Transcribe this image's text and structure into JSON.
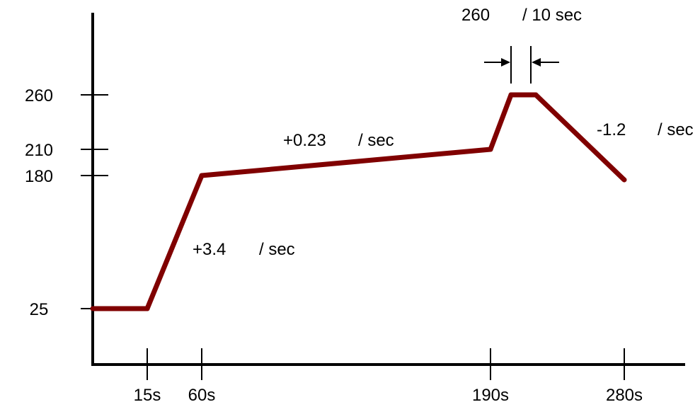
{
  "chart_data": {
    "type": "line",
    "series": [
      {
        "x": [
          0,
          15,
          60,
          190,
          200,
          210,
          280
        ],
        "y": [
          25,
          25,
          180,
          210,
          260,
          260,
          175
        ]
      }
    ],
    "xticks": [
      {
        "value": 15,
        "label": "15s"
      },
      {
        "value": 60,
        "label": "60s"
      },
      {
        "value": 190,
        "label": "190s"
      },
      {
        "value": 280,
        "label": "280s"
      }
    ],
    "yticks": [
      {
        "value": 25,
        "label": "25"
      },
      {
        "value": 180,
        "label": "180"
      },
      {
        "value": 210,
        "label": "210"
      },
      {
        "value": 260,
        "label": "260"
      }
    ],
    "annotations": [
      {
        "value": "+3.4",
        "unit": "/ sec"
      },
      {
        "value": "+0.23",
        "unit": "/ sec"
      },
      {
        "value": "260",
        "unit": "/ 10 sec"
      },
      {
        "value": "-1.2",
        "unit": "/ sec"
      }
    ],
    "line_color": "#800000",
    "grid": false,
    "legend": "none"
  }
}
